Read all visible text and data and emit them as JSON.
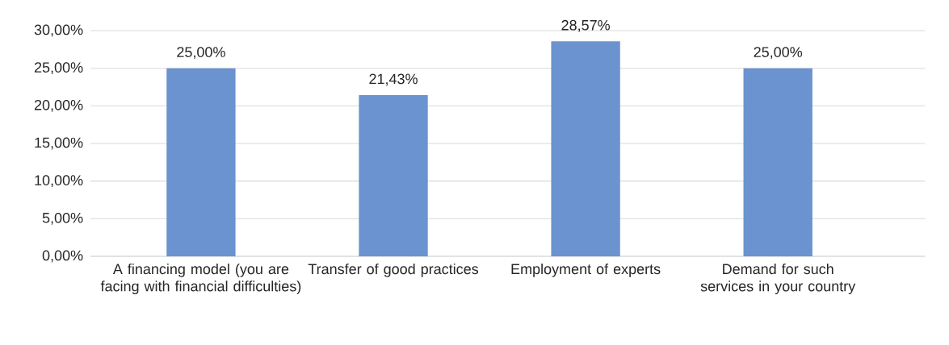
{
  "chart_data": {
    "type": "bar",
    "categories": [
      "A financing model (you are facing with financial difficulties)",
      "Transfer of good practices",
      "Employment of experts",
      "Demand for such services in your country"
    ],
    "values": [
      25,
      21.43,
      28.57,
      25
    ],
    "value_labels": [
      "25,00%",
      "21,43%",
      "28,57%",
      "25,00%"
    ],
    "color": "#6a93cf",
    "ylim": [
      0,
      30
    ],
    "yticks": [
      {
        "value": 0,
        "label": "0,00%"
      },
      {
        "value": 5,
        "label": "5,00%"
      },
      {
        "value": 10,
        "label": "10,00%"
      },
      {
        "value": 15,
        "label": "15,00%"
      },
      {
        "value": 20,
        "label": "20,00%"
      },
      {
        "value": 25,
        "label": "25,00%"
      },
      {
        "value": 30,
        "label": "30,00%"
      }
    ],
    "grid": "y"
  }
}
